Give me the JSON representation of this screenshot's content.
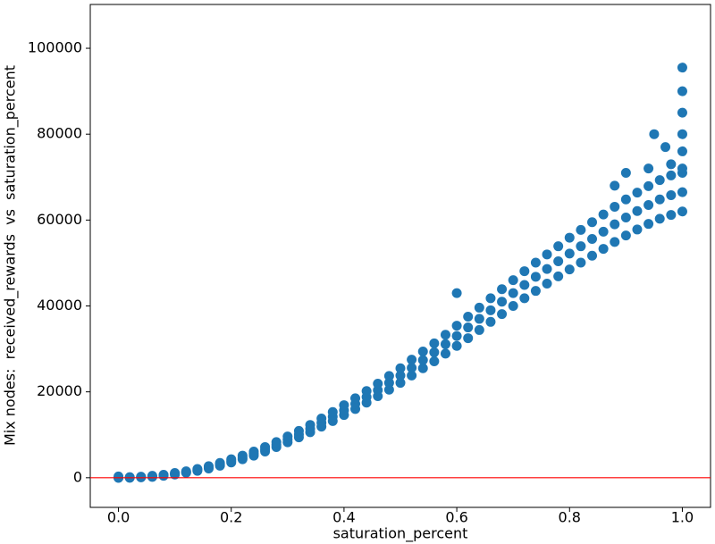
{
  "chart_data": {
    "type": "scatter",
    "x_label": "saturation_percent",
    "y_label": "Mix nodes:  received_rewards  vs  saturation_percent",
    "xlim": [
      -0.05,
      1.05
    ],
    "ylim": [
      -6900,
      110200
    ],
    "xticks": [
      {
        "value": 0,
        "label": "0.0"
      },
      0.2,
      0.4,
      0.6,
      0.8,
      {
        "value": 1,
        "label": "1.0"
      }
    ],
    "yticks": [
      0,
      20000,
      40000,
      60000,
      80000,
      100000
    ],
    "hline": {
      "value": 0,
      "color": "#ff0000"
    },
    "series": [
      {
        "color": "#1f77b4",
        "x": [
          0,
          0.02,
          0.04,
          0.06,
          0.08,
          0.1,
          0.12,
          0.14,
          0.16,
          0.18,
          0.2,
          0.22,
          0.24,
          0.26,
          0.28,
          0.3,
          0.32,
          0.34,
          0.36,
          0.38,
          0.4,
          0.42,
          0.44,
          0.46,
          0.48,
          0.5,
          0.52,
          0.54,
          0.56,
          0.58,
          0.6,
          0.62,
          0.64,
          0.66,
          0.68,
          0.7,
          0.72,
          0.74,
          0.76,
          0.78,
          0.8,
          0.82,
          0.84,
          0.86,
          0.88,
          0.9,
          0.92,
          0.94,
          0.96,
          0.98,
          1,
          0,
          0.02,
          0.04,
          0.06,
          0.08,
          0.1,
          0.12,
          0.14,
          0.16,
          0.18,
          0.2,
          0.22,
          0.24,
          0.26,
          0.28,
          0.3,
          0.32,
          0.34,
          0.36,
          0.38,
          0.4,
          0.42,
          0.44,
          0.46,
          0.48,
          0.5,
          0.52,
          0.54,
          0.56,
          0.58,
          0.6,
          0.62,
          0.64,
          0.66,
          0.68,
          0.7,
          0.72,
          0.74,
          0.76,
          0.78,
          0.8,
          0.82,
          0.84,
          0.86,
          0.88,
          0.9,
          0.92,
          0.94,
          0.96,
          0.98,
          1,
          0,
          0.02,
          0.04,
          0.06,
          0.08,
          0.1,
          0.12,
          0.14,
          0.16,
          0.18,
          0.2,
          0.22,
          0.24,
          0.26,
          0.28,
          0.3,
          0.32,
          0.34,
          0.36,
          0.38,
          0.4,
          0.42,
          0.44,
          0.46,
          0.48,
          0.5,
          0.52,
          0.54,
          0.56,
          0.58,
          0.6,
          0.62,
          0.64,
          0.66,
          0.68,
          0.7,
          0.72,
          0.74,
          0.76,
          0.78,
          0.8,
          0.82,
          0.84,
          0.86,
          0.88,
          0.9,
          0.92,
          0.94,
          0.96,
          0.98,
          1,
          1,
          1,
          1,
          1,
          1,
          1,
          0.95,
          0.97,
          0.94,
          0.88,
          0.98,
          0.6,
          0.9
        ],
        "y": [
          0,
          0,
          100,
          200,
          450,
          750,
          1150,
          1600,
          2150,
          2800,
          3550,
          4300,
          5150,
          6100,
          7150,
          8250,
          9400,
          10600,
          11900,
          13200,
          14600,
          16000,
          17500,
          19000,
          20500,
          22100,
          23800,
          25500,
          27100,
          28900,
          30700,
          32500,
          34400,
          36300,
          38100,
          40000,
          41800,
          43500,
          45200,
          46900,
          48500,
          50100,
          51700,
          53300,
          54900,
          56400,
          57800,
          59100,
          60300,
          61200,
          62000,
          0,
          50,
          150,
          300,
          550,
          900,
          1300,
          1800,
          2400,
          3100,
          3900,
          4700,
          5600,
          6600,
          7700,
          8900,
          10100,
          11400,
          12800,
          14200,
          15700,
          17200,
          18800,
          20400,
          22100,
          23800,
          25600,
          27400,
          29200,
          31100,
          33000,
          35000,
          37000,
          39000,
          41000,
          43000,
          44900,
          46800,
          48600,
          50400,
          52200,
          53900,
          55600,
          57300,
          59000,
          60600,
          62100,
          63500,
          64800,
          65800,
          66500,
          300,
          150,
          250,
          450,
          700,
          1100,
          1500,
          2050,
          2700,
          3450,
          4300,
          5150,
          6100,
          7150,
          8300,
          9600,
          10900,
          12300,
          13800,
          15300,
          16900,
          18500,
          20200,
          21900,
          23700,
          25500,
          27500,
          29400,
          31300,
          33300,
          35400,
          37500,
          39600,
          41800,
          43900,
          46000,
          48100,
          50100,
          52000,
          53900,
          55900,
          57700,
          59500,
          61300,
          63100,
          64800,
          66400,
          67900,
          69300,
          70400,
          71000,
          95500,
          90000,
          85000,
          80000,
          76000,
          72000,
          80000,
          77000,
          72000,
          68000,
          73000,
          43000,
          71000
        ]
      }
    ]
  }
}
